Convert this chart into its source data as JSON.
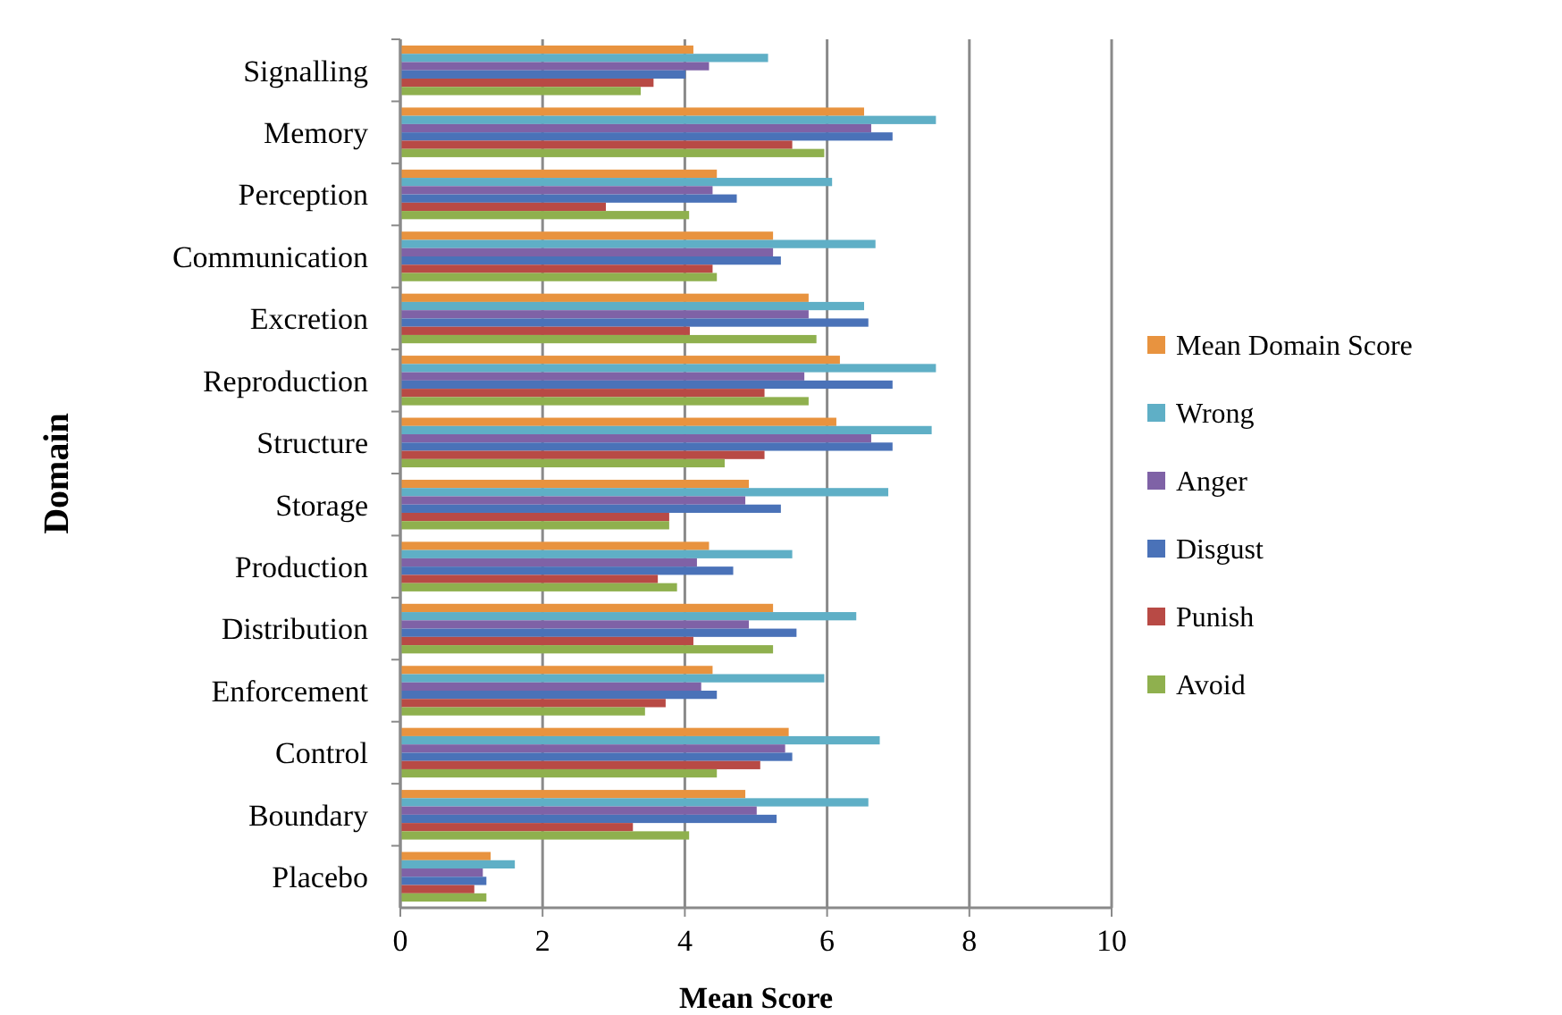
{
  "chart_data": {
    "type": "bar",
    "orientation": "horizontal",
    "xlabel": "Mean Score",
    "ylabel": "Domain",
    "categories": [
      "Signalling",
      "Memory",
      "Perception",
      "Communication",
      "Excretion",
      "Reproduction",
      "Structure",
      "Storage",
      "Production",
      "Distribution",
      "Enforcement",
      "Control",
      "Boundary",
      "Placebo"
    ],
    "series": [
      {
        "name": "Mean Domain Score",
        "color": "#e8933f",
        "values": [
          4.12,
          6.52,
          4.45,
          5.24,
          5.74,
          6.18,
          6.13,
          4.9,
          4.34,
          5.24,
          4.39,
          5.46,
          4.85,
          1.27
        ]
      },
      {
        "name": "Wrong",
        "color": "#5fafc6",
        "values": [
          5.17,
          7.53,
          6.07,
          6.68,
          6.52,
          7.53,
          7.47,
          6.86,
          5.51,
          6.41,
          5.96,
          6.74,
          6.58,
          1.61
        ]
      },
      {
        "name": "Anger",
        "color": "#7f62a6",
        "values": [
          4.34,
          6.62,
          4.39,
          5.24,
          5.74,
          5.68,
          6.62,
          4.85,
          4.17,
          4.9,
          4.23,
          5.41,
          5.01,
          1.16
        ]
      },
      {
        "name": "Disgust",
        "color": "#4a72b8",
        "values": [
          4.01,
          6.92,
          4.73,
          5.35,
          6.58,
          6.92,
          6.92,
          5.35,
          4.68,
          5.57,
          4.45,
          5.51,
          5.29,
          1.21
        ]
      },
      {
        "name": "Punish",
        "color": "#b84a45",
        "values": [
          3.56,
          5.51,
          2.89,
          4.39,
          4.07,
          5.12,
          5.12,
          3.78,
          3.62,
          4.12,
          3.73,
          5.06,
          3.27,
          1.04
        ]
      },
      {
        "name": "Avoid",
        "color": "#8fb04e",
        "values": [
          3.38,
          5.96,
          4.06,
          4.45,
          5.85,
          5.74,
          4.56,
          3.78,
          3.89,
          5.24,
          3.44,
          4.45,
          4.06,
          1.21
        ]
      }
    ],
    "xlim": [
      0,
      10
    ],
    "xticks": [
      0,
      2,
      4,
      6,
      8,
      10
    ],
    "grid": "x",
    "legend": "right"
  }
}
